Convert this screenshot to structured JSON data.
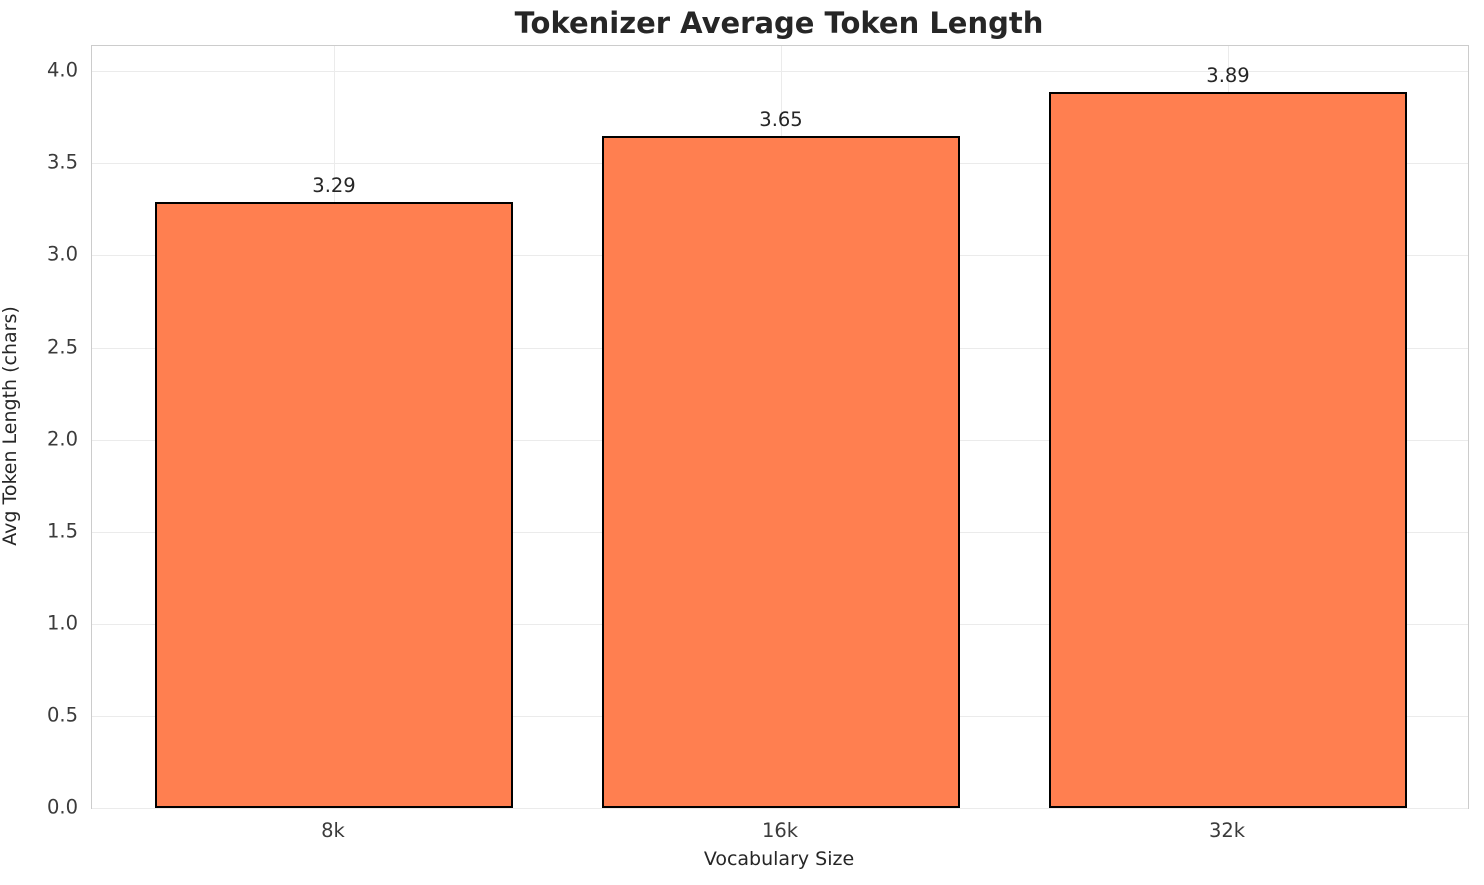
{
  "chart_data": {
    "type": "bar",
    "title": "Tokenizer Average Token Length",
    "xlabel": "Vocabulary Size",
    "ylabel": "Avg Token Length (chars)",
    "categories": [
      "8k",
      "16k",
      "32k"
    ],
    "values": [
      3.29,
      3.65,
      3.89
    ],
    "value_labels": [
      "3.29",
      "3.65",
      "3.89"
    ],
    "yticks": [
      0.0,
      0.5,
      1.0,
      1.5,
      2.0,
      2.5,
      3.0,
      3.5,
      4.0
    ],
    "ytick_labels": [
      "0.0",
      "0.5",
      "1.0",
      "1.5",
      "2.0",
      "2.5",
      "3.0",
      "3.5",
      "4.0"
    ],
    "ylim": [
      0,
      4.137
    ],
    "grid": true,
    "legend": null,
    "colors": {
      "bar_fill": "#FF7F50",
      "bar_edge": "#000000",
      "grid": "#ebebeb",
      "spine": "#cccccc",
      "text": "#262626",
      "tick_text": "#3b3b3b",
      "background": "#ffffff"
    }
  }
}
